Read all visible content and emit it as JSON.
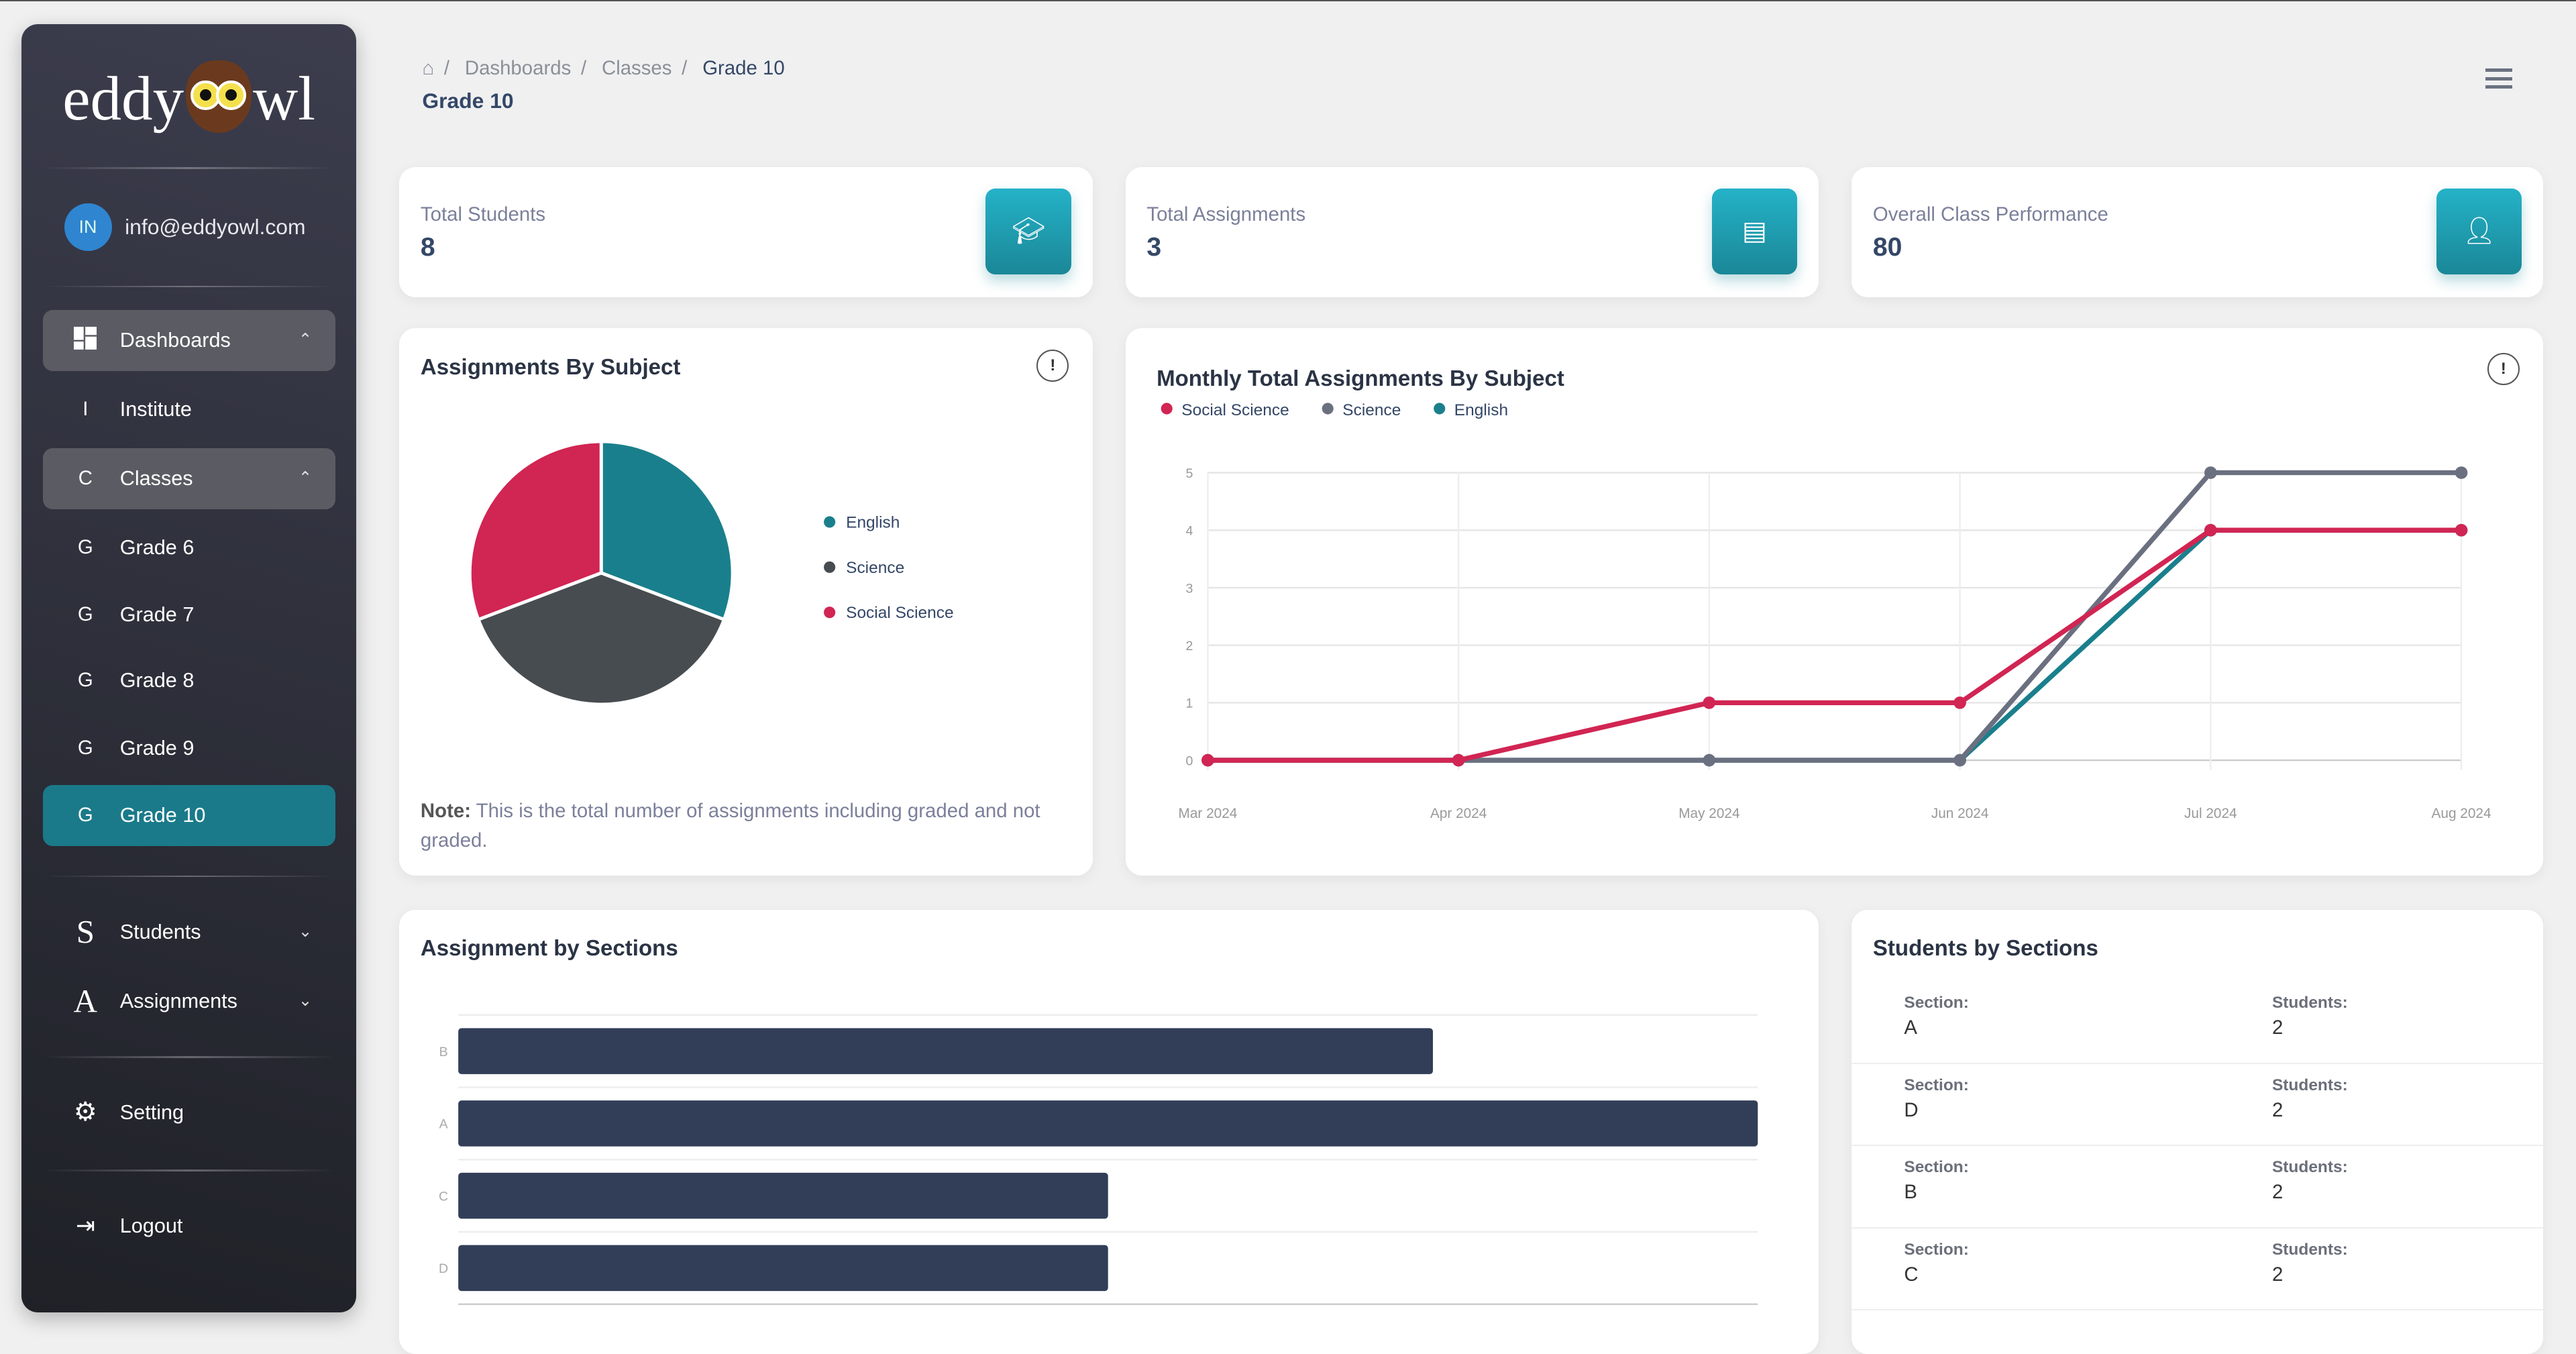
{
  "sidebar": {
    "logo": {
      "left": "eddy",
      "right": "wl"
    },
    "user": {
      "initials": "IN",
      "email": "info@eddyowl.com"
    },
    "items": [
      {
        "icon": "dashboard-icon",
        "label": "Dashboards",
        "chevron": "up"
      },
      {
        "icon": "I",
        "label": "Institute"
      },
      {
        "icon": "C",
        "label": "Classes",
        "chevron": "up"
      },
      {
        "icon": "G",
        "label": "Grade 6"
      },
      {
        "icon": "G",
        "label": "Grade 7"
      },
      {
        "icon": "G",
        "label": "Grade 8"
      },
      {
        "icon": "G",
        "label": "Grade 9"
      },
      {
        "icon": "G",
        "label": "Grade 10",
        "active": true
      },
      {
        "icon": "S",
        "label": "Students",
        "chevron": "down"
      },
      {
        "icon": "A",
        "label": "Assignments",
        "chevron": "down"
      },
      {
        "icon": "gear-icon",
        "label": "Setting"
      },
      {
        "icon": "logout-icon",
        "label": "Logout"
      }
    ]
  },
  "header": {
    "breadcrumb": [
      "Dashboards",
      "Classes",
      "Grade 10"
    ],
    "title": "Grade 10"
  },
  "stats": [
    {
      "label": "Total Students",
      "value": "8",
      "icon": "graduation-cap-icon"
    },
    {
      "label": "Total Assignments",
      "value": "3",
      "icon": "document-icon"
    },
    {
      "label": "Overall Class Performance",
      "value": "80",
      "icon": "person-icon"
    }
  ],
  "colors": {
    "english": "#1a7f8c",
    "science": "#6b7080",
    "social_science": "#d12553",
    "bars": "#323e58",
    "accent": "#1a7a89"
  },
  "pie": {
    "title": "Assignments By Subject",
    "note_label": "Note:",
    "note_text": "This is the total number of assignments including graded and not graded."
  },
  "line": {
    "title": "Monthly Total Assignments By Subject"
  },
  "bars": {
    "title": "Assignment by Sections"
  },
  "students_by_sections": {
    "title": "Students by Sections",
    "section_label": "Section:",
    "students_label": "Students:",
    "rows": [
      {
        "section": "A",
        "students": "2"
      },
      {
        "section": "D",
        "students": "2"
      },
      {
        "section": "B",
        "students": "2"
      },
      {
        "section": "C",
        "students": "2"
      }
    ]
  },
  "chart_data": [
    {
      "type": "pie",
      "title": "Assignments By Subject",
      "categories": [
        "English",
        "Science",
        "Social Science"
      ],
      "values": [
        4,
        5,
        4
      ],
      "colors": [
        "#1a7f8c",
        "#474c50",
        "#d12553"
      ],
      "legend": "right"
    },
    {
      "type": "line",
      "title": "Monthly Total Assignments By Subject",
      "x": [
        "Mar 2024",
        "Apr 2024",
        "May 2024",
        "Jun 2024",
        "Jul 2024",
        "Aug 2024"
      ],
      "ylim": [
        0,
        5
      ],
      "yticks": [
        0,
        1,
        2,
        3,
        4,
        5
      ],
      "grid": true,
      "legend": "top-left",
      "series": [
        {
          "name": "Social Science",
          "color": "#d12553",
          "values": [
            0,
            0,
            1,
            1,
            4,
            4
          ]
        },
        {
          "name": "Science",
          "color": "#6b7080",
          "values": [
            0,
            0,
            0,
            0,
            5,
            5
          ]
        },
        {
          "name": "English",
          "color": "#1a7f8c",
          "values": [
            0,
            0,
            0,
            0,
            4,
            4
          ]
        }
      ]
    },
    {
      "type": "bar",
      "orientation": "horizontal",
      "title": "Assignment by Sections",
      "categories": [
        "B",
        "A",
        "C",
        "D"
      ],
      "values": [
        3,
        4,
        2,
        2
      ],
      "color": "#323e58"
    }
  ]
}
